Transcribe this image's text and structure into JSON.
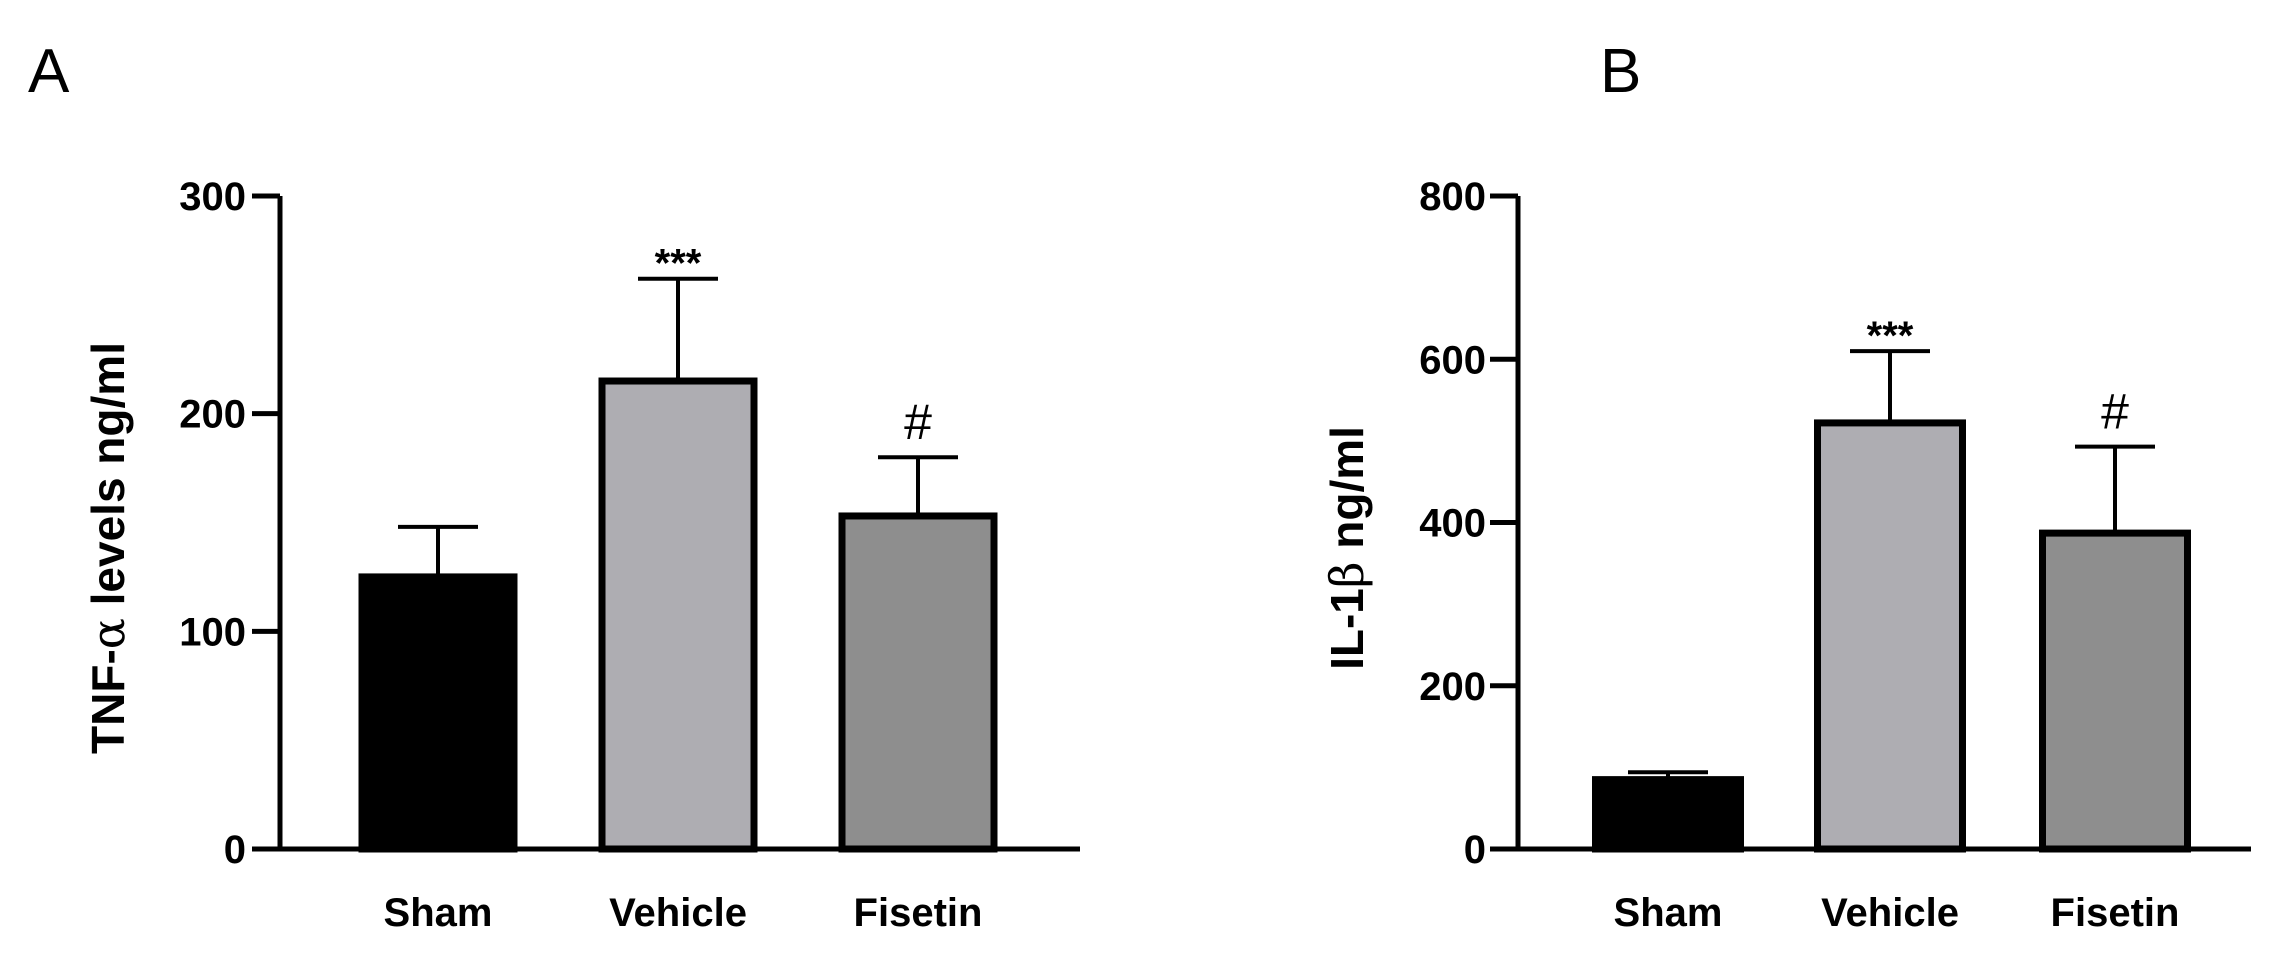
{
  "chart_data": [
    {
      "panel": "A",
      "type": "bar",
      "title": "",
      "xlabel": "",
      "ylabel_main": "TNF-",
      "ylabel_symbol": "α",
      "ylabel_rest": " levels ng/ml",
      "ylim": [
        0,
        300
      ],
      "yticks": [
        0,
        100,
        200,
        300
      ],
      "categories": [
        "Sham",
        "Vehicle",
        "Fisetin"
      ],
      "values": [
        125,
        215,
        153
      ],
      "errors": [
        23,
        47,
        27
      ],
      "bar_colors": [
        "#000000",
        "#aeadb2",
        "#8e8e8e"
      ],
      "annotations": [
        "",
        "***",
        "#"
      ],
      "grid": false,
      "legend": "none"
    },
    {
      "panel": "B",
      "type": "bar",
      "title": "",
      "xlabel": "",
      "ylabel_main": "IL-1",
      "ylabel_symbol": "β",
      "ylabel_rest": " ng/ml",
      "ylim": [
        0,
        800
      ],
      "yticks": [
        0,
        200,
        400,
        600,
        800
      ],
      "categories": [
        "Sham",
        "Vehicle",
        "Fisetin"
      ],
      "values": [
        85,
        522,
        387
      ],
      "errors": [
        9,
        88,
        106
      ],
      "bar_colors": [
        "#000000",
        "#aeadb2",
        "#8e8e8e"
      ],
      "annotations": [
        "",
        "***",
        "#"
      ],
      "grid": false,
      "legend": "none"
    }
  ]
}
